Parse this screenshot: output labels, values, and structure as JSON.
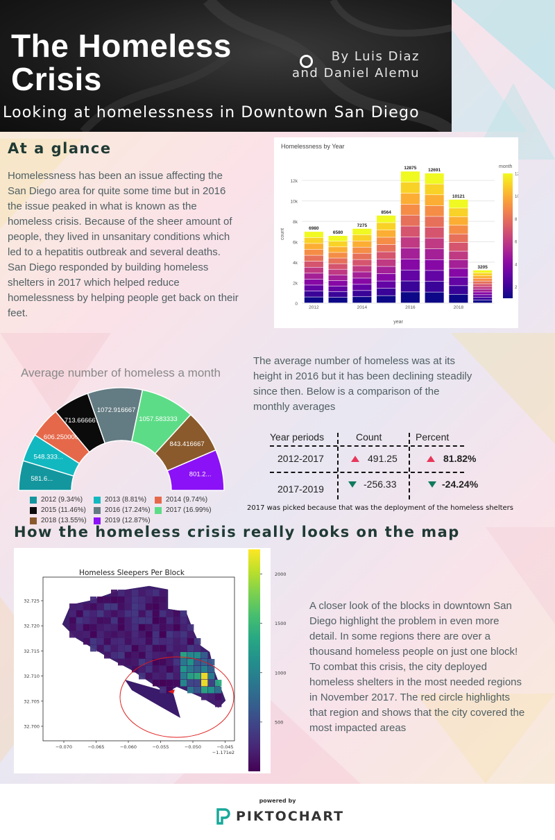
{
  "header": {
    "title_line1": "The Homeless",
    "title_line2": "Crisis",
    "authors_line1": "By Luis Diaz",
    "authors_line2": "and Daniel Alemu",
    "subtitle": "Looking at homelessness in Downtown San Diego"
  },
  "glance": {
    "heading": "At a glance",
    "text": "Homelessness has been an issue affecting the San Diego area for quite some time but in 2016 the issue peaked in what is known as the homeless crisis.  Because of the sheer amount of people, they lived in unsanitary conditions which led to a hepatitis outbreak and several deaths. San Diego responded by building homeless shelters in 2017  which helped reduce homelessness by helping people get back on their feet."
  },
  "average_text": "The average number of homeless was at its height in 2016 but it has been declining steadily since then. Below is a comparison of the monthly averages",
  "table": {
    "headers": [
      "Year periods",
      "Count",
      "Percent"
    ],
    "rows": [
      {
        "period": "2012-2017",
        "count": "491.25",
        "percent": "81.82%",
        "direction": "up"
      },
      {
        "period": "2017-2019",
        "count": "-256.33",
        "percent": "-24.24%",
        "direction": "down"
      }
    ],
    "note": "2017 was picked because that was the deployment of the homeless shelters"
  },
  "map_section": {
    "heading": "How the homeless crisis really looks on the map",
    "text": "A closer look of the blocks in downtown San Diego highlight the problem in even more detail. In some regions there are over a thousand homeless people on just one block! To combat this crisis, the city deployed homeless shelters in the most needed regions in November 2017.  The red circle highlights that region and shows that the city covered the most impacted areas"
  },
  "footer": {
    "powered": "powered by",
    "brand": "PIKTOCHART"
  },
  "colors": {
    "up": "#e8365a",
    "down": "#0f7a5e",
    "heading": "#1f3a34"
  },
  "chart_data": [
    {
      "type": "bar",
      "stacked": true,
      "title": "Homelessness by Year",
      "xlabel": "year",
      "ylabel": "count",
      "categories": [
        2012,
        2013,
        2014,
        2015,
        2016,
        2017,
        2018,
        2019
      ],
      "values": [
        6980,
        6580,
        7275,
        8564,
        12875,
        12691,
        10121,
        3205
      ],
      "value_labels": [
        "6980",
        "6580",
        "7275",
        "8564",
        "12875",
        "12691",
        "10121",
        "3205"
      ],
      "x_ticks": [
        "2012",
        "2014",
        "2016",
        "2018"
      ],
      "y_ticks": [
        "0",
        "2k",
        "4k",
        "6k",
        "8k",
        "10k",
        "12k"
      ],
      "ylim": [
        0,
        13500
      ],
      "stack_by": "month",
      "colorbar_title": "month",
      "colorbar_ticks": [
        "2",
        "4",
        "6",
        "8",
        "10",
        "12"
      ],
      "colorbar_range": [
        1,
        12
      ]
    },
    {
      "type": "pie",
      "half_donut": true,
      "title": "Average number of homeless a month",
      "categories": [
        "2012",
        "2013",
        "2014",
        "2015",
        "2016",
        "2017",
        "2018",
        "2019"
      ],
      "values": [
        581.6,
        548.333,
        606.25,
        713.666667,
        1072.916667,
        1057.583333,
        843.416667,
        801.2
      ],
      "slice_labels": [
        "581.6...",
        "548.333...",
        "606.250000",
        "713.666667",
        "1072.916667",
        "1057.583333",
        "843.416667",
        "801.2..."
      ],
      "legend": [
        "2012 (9.34%)",
        "2013 (8.81%)",
        "2014 (9.74%)",
        "2015 (11.46%)",
        "2016 (17.24%)",
        "2017 (16.99%)",
        "2018 (13.55%)",
        "2019 (12.87%)"
      ],
      "colors": [
        "#14969e",
        "#12b8c0",
        "#e5684a",
        "#0b0b0b",
        "#637b82",
        "#5ddc87",
        "#8a5a2c",
        "#8b12f6"
      ]
    },
    {
      "type": "heatmap",
      "title": "Homeless Sleepers Per Block",
      "x_ticks": [
        "−0.070",
        "−0.065",
        "−0.060",
        "−0.055",
        "−0.050",
        "−0.045"
      ],
      "x_offset_label": "−1.171e2",
      "y_ticks": [
        "32.700",
        "32.705",
        "32.710",
        "32.715",
        "32.720",
        "32.725"
      ],
      "colorbar_ticks": [
        "500",
        "1000",
        "1500",
        "2000"
      ],
      "colorbar_range": [
        0,
        2250
      ],
      "annotation": "red circle around the south-east blocks"
    }
  ]
}
